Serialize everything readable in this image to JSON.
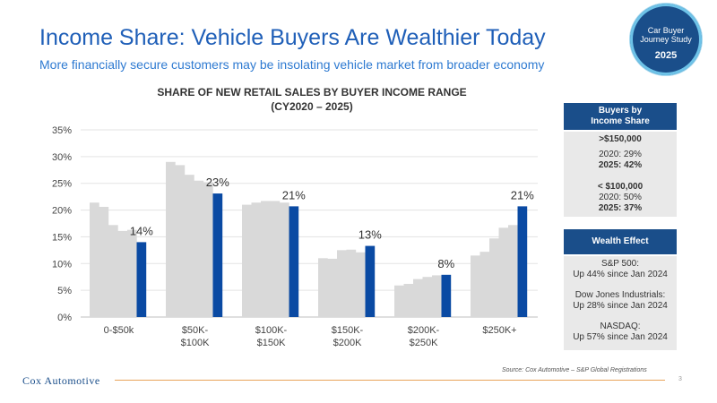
{
  "header": {
    "title": "Income Share: Vehicle Buyers Are Wealthier Today",
    "subtitle": "More financially secure customers may be insolating vehicle market from broader economy"
  },
  "badge": {
    "line1": "Car Buyer",
    "line2": "Journey Study",
    "year": "2025"
  },
  "chart_data": {
    "type": "bar",
    "title_line1": "SHARE OF NEW RETAIL SALES BY BUYER INCOME RANGE",
    "title_line2": "(CY2020 – 2025)",
    "categories": [
      "0-$50k",
      "$50K-\n$100K",
      "$100K-\n$150K",
      "$150K-\n$200K",
      "$200K-\n$250K",
      "$250K+"
    ],
    "ylim": [
      0,
      35
    ],
    "yticks": [
      "0%",
      "5%",
      "10%",
      "15%",
      "20%",
      "25%",
      "30%",
      "35%"
    ],
    "grid": true,
    "bars_per_group": 6,
    "highlight_last": true,
    "colors": {
      "history": "#d9d9d9",
      "highlight": "#0a4aa3"
    },
    "groups": [
      {
        "values": [
          21.4,
          20.6,
          17.2,
          16.1,
          16.3,
          14.0
        ],
        "label": "14%"
      },
      {
        "values": [
          29.0,
          28.4,
          26.6,
          25.5,
          25.2,
          23.1
        ],
        "label": "23%"
      },
      {
        "values": [
          21.0,
          21.4,
          21.7,
          21.7,
          21.4,
          20.7
        ],
        "label": "21%"
      },
      {
        "values": [
          11.0,
          10.9,
          12.5,
          12.6,
          12.1,
          13.3
        ],
        "label": "13%"
      },
      {
        "values": [
          5.9,
          6.2,
          7.1,
          7.5,
          7.8,
          7.9
        ],
        "label": "8%"
      },
      {
        "values": [
          11.5,
          12.2,
          14.7,
          16.7,
          17.2,
          20.7
        ],
        "label": "21%"
      }
    ]
  },
  "panel": {
    "buyers_header": [
      "Buyers by",
      "Income Share"
    ],
    "buyers_lines": [
      {
        "text": ">$150,000",
        "bold": true
      },
      {
        "text": "2020: 29%",
        "bold": false
      },
      {
        "text": "2025: 42%",
        "bold": true
      },
      {
        "text": "< $100,000",
        "bold": true
      },
      {
        "text": "2020: 50%",
        "bold": false
      },
      {
        "text": "2025: 37%",
        "bold": true
      }
    ],
    "wealth_header": "Wealth Effect",
    "wealth_lines": [
      "S&P 500:",
      "Up 44% since Jan 2024",
      "Dow Jones Industrials:",
      "Up 28% since Jan 2024",
      "NASDAQ:",
      "Up 57% since Jan 2024"
    ]
  },
  "footer": {
    "logo": "Cox Automotive",
    "source": "Source: Cox Automotive – S&P Global Registrations",
    "page": "3"
  }
}
